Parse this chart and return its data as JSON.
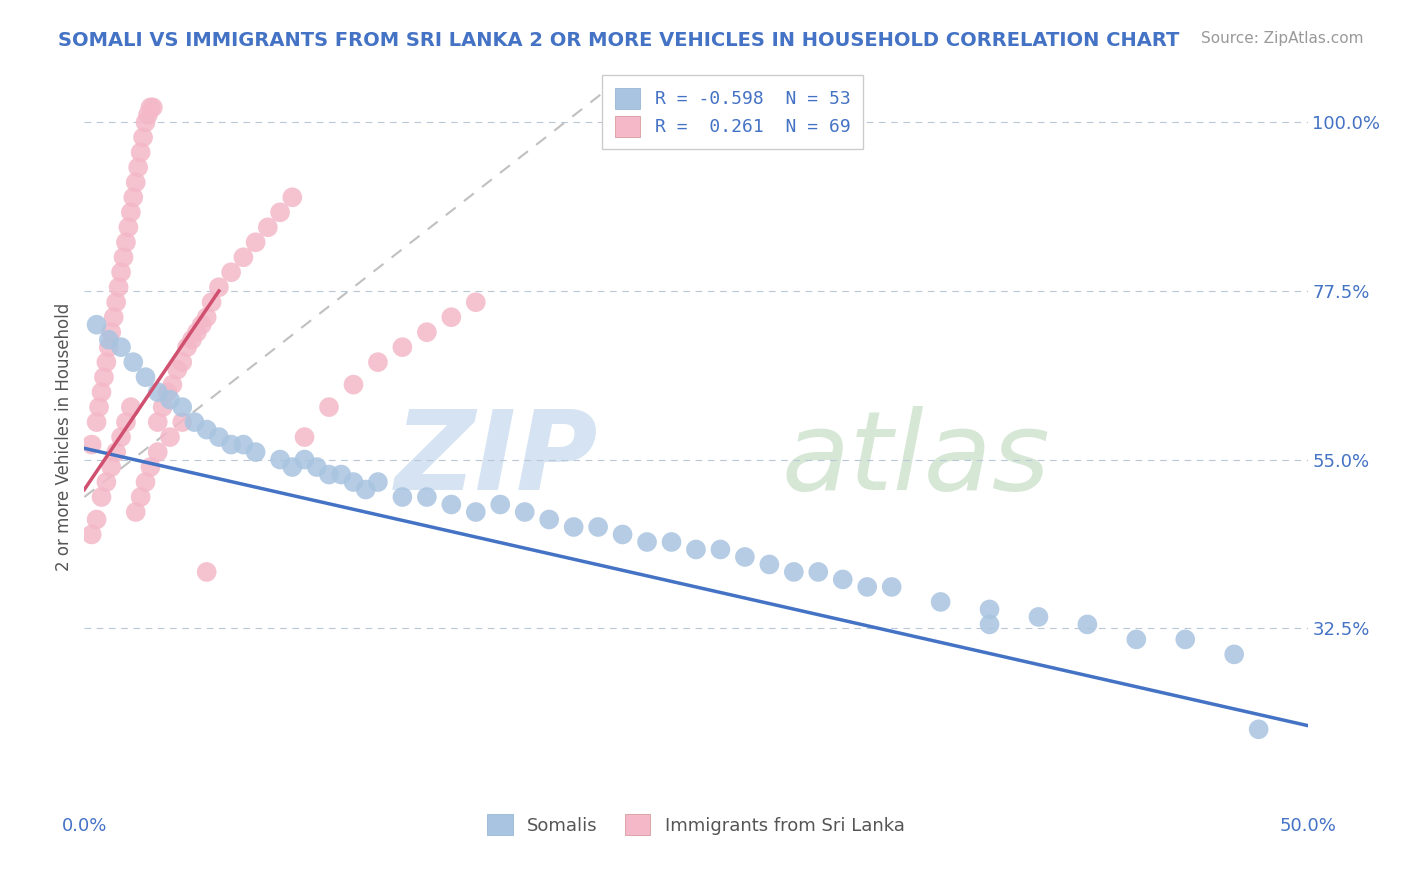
{
  "title": "SOMALI VS IMMIGRANTS FROM SRI LANKA 2 OR MORE VEHICLES IN HOUSEHOLD CORRELATION CHART",
  "source": "Source: ZipAtlas.com",
  "ylabel": "2 or more Vehicles in Household",
  "ytick_labels": [
    "32.5%",
    "55.0%",
    "77.5%",
    "100.0%"
  ],
  "ytick_vals": [
    0.325,
    0.55,
    0.775,
    1.0
  ],
  "legend_blue_label": "Somalis",
  "legend_pink_label": "Immigrants from Sri Lanka",
  "legend_text_blue": "R = -0.598  N = 53",
  "legend_text_pink": "R =  0.261  N = 69",
  "blue_color": "#a8c4e0",
  "pink_color": "#f4b8c8",
  "blue_line_color": "#4472c4",
  "pink_line_color": "#d05070",
  "title_color": "#4472c4",
  "xmin": 0.0,
  "xmax": 0.5,
  "ymin": 0.08,
  "ymax": 1.08,
  "blue_line_x0": 0.0,
  "blue_line_x1": 0.5,
  "blue_line_y0": 0.565,
  "blue_line_y1": 0.195,
  "pink_line_x0": 0.0,
  "pink_line_x1": 0.055,
  "pink_line_y0": 0.51,
  "pink_line_y1": 0.775,
  "dash_line_x0": 0.0,
  "dash_line_x1": 0.22,
  "dash_line_y0": 0.5,
  "dash_line_y1": 1.06,
  "blue_x": [
    0.005,
    0.01,
    0.015,
    0.02,
    0.025,
    0.03,
    0.035,
    0.04,
    0.045,
    0.05,
    0.055,
    0.06,
    0.065,
    0.07,
    0.08,
    0.085,
    0.09,
    0.095,
    0.1,
    0.105,
    0.11,
    0.115,
    0.12,
    0.13,
    0.14,
    0.15,
    0.16,
    0.17,
    0.18,
    0.19,
    0.2,
    0.21,
    0.22,
    0.23,
    0.24,
    0.25,
    0.26,
    0.27,
    0.28,
    0.29,
    0.3,
    0.31,
    0.32,
    0.33,
    0.35,
    0.37,
    0.39,
    0.41,
    0.43,
    0.45,
    0.47,
    0.48,
    0.37
  ],
  "blue_y": [
    0.73,
    0.71,
    0.7,
    0.68,
    0.66,
    0.64,
    0.63,
    0.62,
    0.6,
    0.59,
    0.58,
    0.57,
    0.57,
    0.56,
    0.55,
    0.54,
    0.55,
    0.54,
    0.53,
    0.53,
    0.52,
    0.51,
    0.52,
    0.5,
    0.5,
    0.49,
    0.48,
    0.49,
    0.48,
    0.47,
    0.46,
    0.46,
    0.45,
    0.44,
    0.44,
    0.43,
    0.43,
    0.42,
    0.41,
    0.4,
    0.4,
    0.39,
    0.38,
    0.38,
    0.36,
    0.35,
    0.34,
    0.33,
    0.31,
    0.31,
    0.29,
    0.19,
    0.33
  ],
  "pink_x": [
    0.003,
    0.005,
    0.006,
    0.007,
    0.008,
    0.009,
    0.01,
    0.011,
    0.012,
    0.013,
    0.014,
    0.015,
    0.016,
    0.017,
    0.018,
    0.019,
    0.02,
    0.021,
    0.022,
    0.023,
    0.024,
    0.025,
    0.026,
    0.027,
    0.028,
    0.03,
    0.032,
    0.034,
    0.036,
    0.038,
    0.04,
    0.042,
    0.044,
    0.046,
    0.048,
    0.05,
    0.052,
    0.055,
    0.06,
    0.065,
    0.07,
    0.075,
    0.08,
    0.085,
    0.09,
    0.1,
    0.11,
    0.12,
    0.13,
    0.14,
    0.15,
    0.16,
    0.003,
    0.005,
    0.007,
    0.009,
    0.011,
    0.013,
    0.015,
    0.017,
    0.019,
    0.021,
    0.023,
    0.025,
    0.027,
    0.03,
    0.035,
    0.04,
    0.05
  ],
  "pink_y": [
    0.57,
    0.6,
    0.62,
    0.64,
    0.66,
    0.68,
    0.7,
    0.72,
    0.74,
    0.76,
    0.78,
    0.8,
    0.82,
    0.84,
    0.86,
    0.88,
    0.9,
    0.92,
    0.94,
    0.96,
    0.98,
    1.0,
    1.01,
    1.02,
    1.02,
    0.6,
    0.62,
    0.64,
    0.65,
    0.67,
    0.68,
    0.7,
    0.71,
    0.72,
    0.73,
    0.74,
    0.76,
    0.78,
    0.8,
    0.82,
    0.84,
    0.86,
    0.88,
    0.9,
    0.58,
    0.62,
    0.65,
    0.68,
    0.7,
    0.72,
    0.74,
    0.76,
    0.45,
    0.47,
    0.5,
    0.52,
    0.54,
    0.56,
    0.58,
    0.6,
    0.62,
    0.48,
    0.5,
    0.52,
    0.54,
    0.56,
    0.58,
    0.6,
    0.4
  ]
}
